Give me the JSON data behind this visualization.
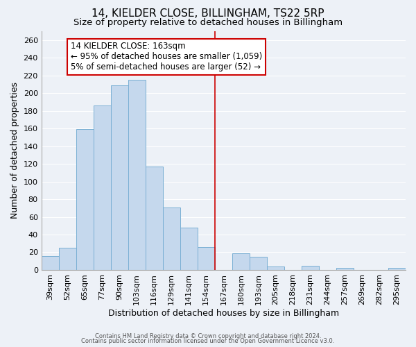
{
  "title": "14, KIELDER CLOSE, BILLINGHAM, TS22 5RP",
  "subtitle": "Size of property relative to detached houses in Billingham",
  "xlabel": "Distribution of detached houses by size in Billingham",
  "ylabel": "Number of detached properties",
  "footer_line1": "Contains HM Land Registry data © Crown copyright and database right 2024.",
  "footer_line2": "Contains public sector information licensed under the Open Government Licence v3.0.",
  "bins": [
    "39sqm",
    "52sqm",
    "65sqm",
    "77sqm",
    "90sqm",
    "103sqm",
    "116sqm",
    "129sqm",
    "141sqm",
    "154sqm",
    "167sqm",
    "180sqm",
    "193sqm",
    "205sqm",
    "218sqm",
    "231sqm",
    "244sqm",
    "257sqm",
    "269sqm",
    "282sqm",
    "295sqm"
  ],
  "values": [
    16,
    25,
    159,
    186,
    209,
    215,
    117,
    71,
    48,
    26,
    0,
    19,
    15,
    4,
    0,
    5,
    0,
    2,
    0,
    0,
    2
  ],
  "bar_color": "#c5d8ed",
  "bar_edge_color": "#7aafd4",
  "vline_x_index": 10,
  "vline_color": "#cc0000",
  "annotation_line1": "14 KIELDER CLOSE: 163sqm",
  "annotation_line2": "← 95% of detached houses are smaller (1,059)",
  "annotation_line3": "5% of semi-detached houses are larger (52) →",
  "annotation_box_color": "#ffffff",
  "annotation_box_edge_color": "#cc0000",
  "ylim": [
    0,
    270
  ],
  "yticks": [
    0,
    20,
    40,
    60,
    80,
    100,
    120,
    140,
    160,
    180,
    200,
    220,
    240,
    260
  ],
  "background_color": "#edf1f7",
  "grid_color": "#ffffff",
  "title_fontsize": 11,
  "subtitle_fontsize": 9.5,
  "xlabel_fontsize": 9,
  "ylabel_fontsize": 9,
  "tick_fontsize": 8,
  "annotation_fontsize": 8.5,
  "footer_fontsize": 6
}
